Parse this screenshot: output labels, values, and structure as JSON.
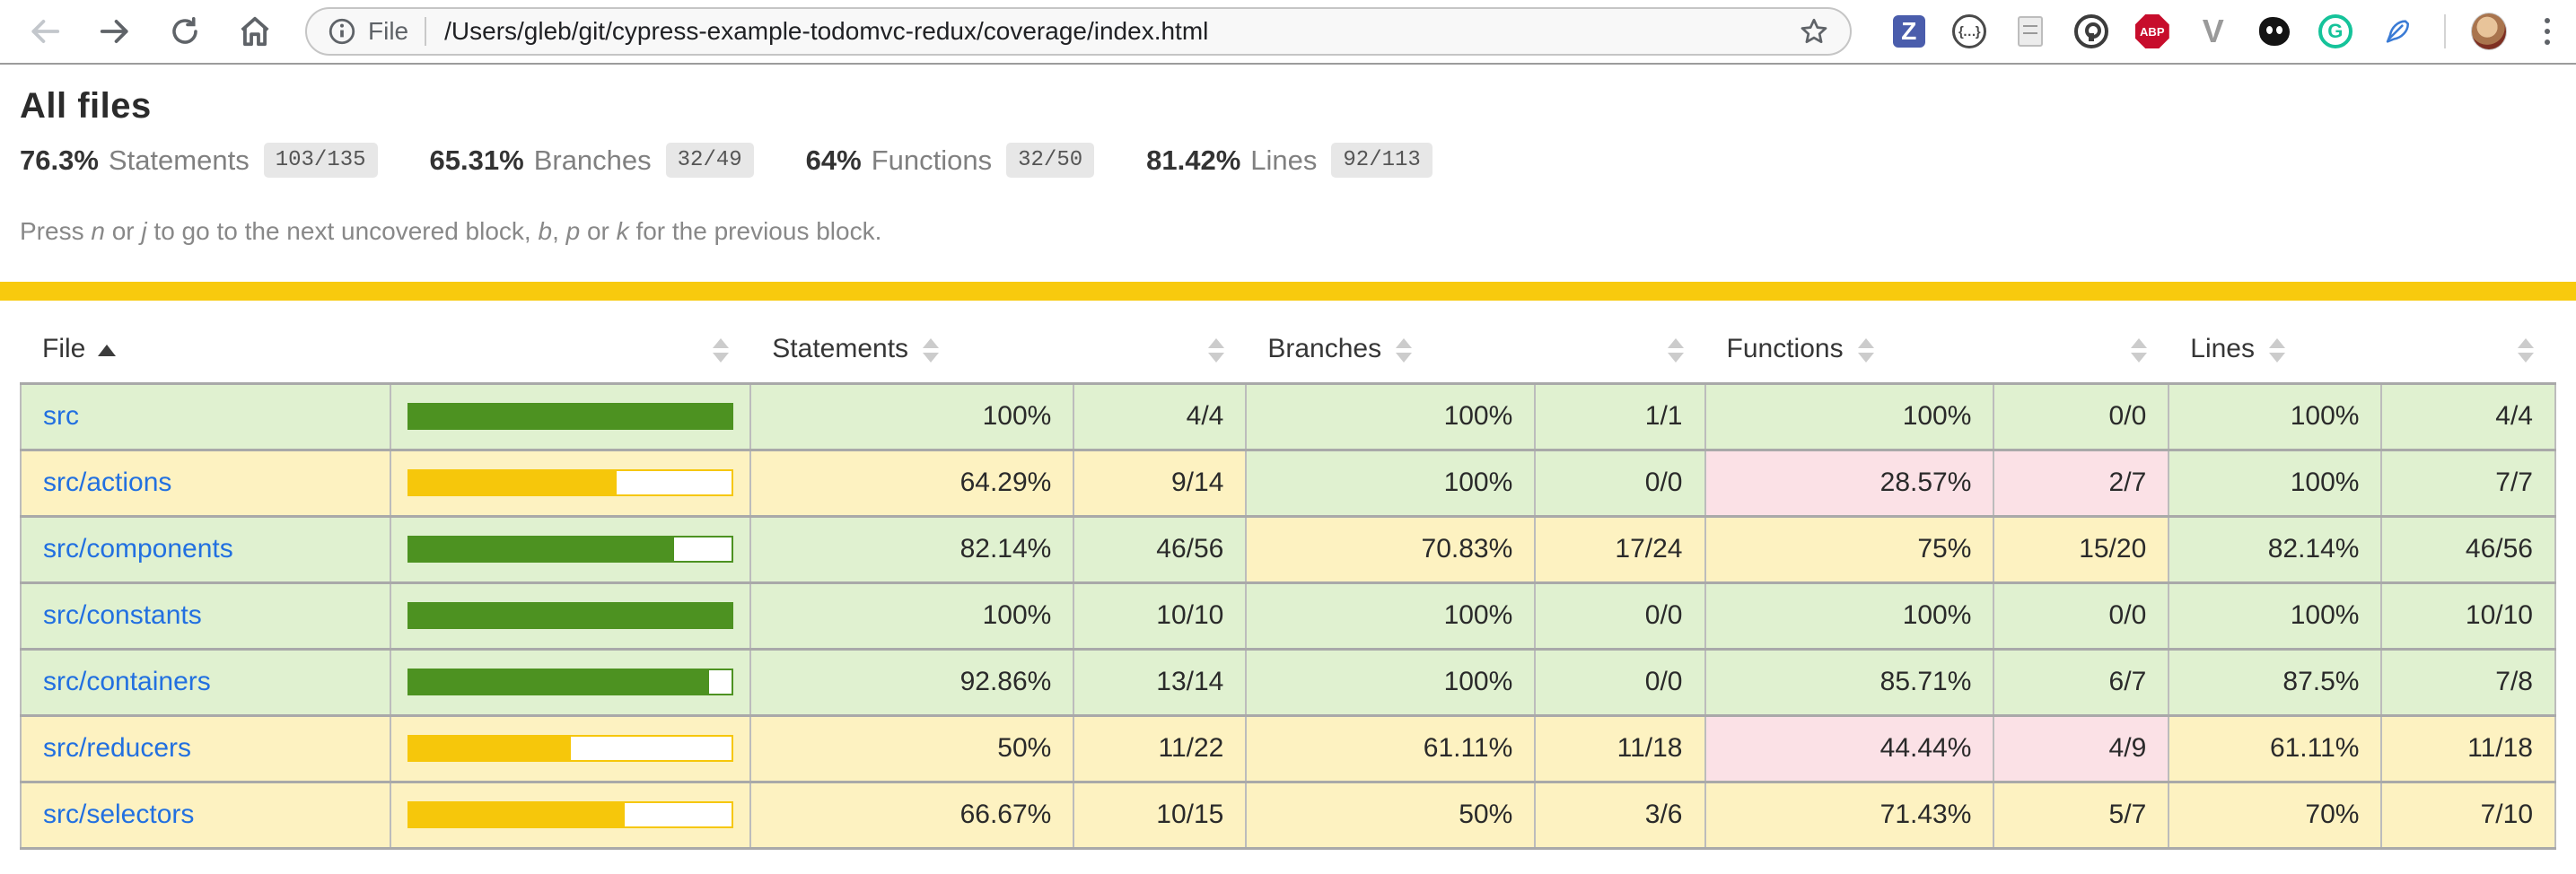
{
  "browser": {
    "scheme_label": "File",
    "url": "/Users/gleb/git/cypress-example-todomvc-redux/coverage/index.html",
    "extensions": [
      {
        "name": "zotero",
        "glyph": "Z"
      },
      {
        "name": "json-viewer",
        "glyph": "{…}"
      },
      {
        "name": "notes",
        "glyph": ""
      },
      {
        "name": "onepassword",
        "glyph": ""
      },
      {
        "name": "adblock-plus",
        "glyph": "ABP"
      },
      {
        "name": "vue-devtools",
        "glyph": "V"
      },
      {
        "name": "monster",
        "glyph": ""
      },
      {
        "name": "grammarly",
        "glyph": "G"
      },
      {
        "name": "feather",
        "glyph": ""
      }
    ]
  },
  "page": {
    "title": "All files"
  },
  "summary": {
    "items": [
      {
        "pct": "76.3%",
        "label": "Statements",
        "frac": "103/135"
      },
      {
        "pct": "65.31%",
        "label": "Branches",
        "frac": "32/49"
      },
      {
        "pct": "64%",
        "label": "Functions",
        "frac": "32/50"
      },
      {
        "pct": "81.42%",
        "label": "Lines",
        "frac": "92/113"
      }
    ]
  },
  "hint": {
    "segments": [
      {
        "t": "Press "
      },
      {
        "t": "n",
        "i": true
      },
      {
        "t": " or "
      },
      {
        "t": "j",
        "i": true
      },
      {
        "t": " to go to the next uncovered block, "
      },
      {
        "t": "b",
        "i": true
      },
      {
        "t": ", "
      },
      {
        "t": "p",
        "i": true
      },
      {
        "t": " or "
      },
      {
        "t": "k",
        "i": true
      },
      {
        "t": " for the previous block."
      }
    ]
  },
  "table": {
    "headers": {
      "file": "File",
      "statements": "Statements",
      "branches": "Branches",
      "functions": "Functions",
      "lines": "Lines"
    },
    "sort": {
      "column": "file",
      "direction": "asc"
    },
    "rows": [
      {
        "file": "src",
        "level": "high",
        "bar": {
          "pct": 100,
          "level": "high"
        },
        "statements": {
          "pct": "100%",
          "frac": "4/4",
          "level": "high"
        },
        "branches": {
          "pct": "100%",
          "frac": "1/1",
          "level": "high"
        },
        "functions": {
          "pct": "100%",
          "frac": "0/0",
          "level": "high"
        },
        "lines": {
          "pct": "100%",
          "frac": "4/4",
          "level": "high"
        }
      },
      {
        "file": "src/actions",
        "level": "medium",
        "bar": {
          "pct": 64.29,
          "level": "medium"
        },
        "statements": {
          "pct": "64.29%",
          "frac": "9/14",
          "level": "medium"
        },
        "branches": {
          "pct": "100%",
          "frac": "0/0",
          "level": "high"
        },
        "functions": {
          "pct": "28.57%",
          "frac": "2/7",
          "level": "low"
        },
        "lines": {
          "pct": "100%",
          "frac": "7/7",
          "level": "high"
        }
      },
      {
        "file": "src/components",
        "level": "high",
        "bar": {
          "pct": 82.14,
          "level": "high"
        },
        "statements": {
          "pct": "82.14%",
          "frac": "46/56",
          "level": "high"
        },
        "branches": {
          "pct": "70.83%",
          "frac": "17/24",
          "level": "medium"
        },
        "functions": {
          "pct": "75%",
          "frac": "15/20",
          "level": "medium"
        },
        "lines": {
          "pct": "82.14%",
          "frac": "46/56",
          "level": "high"
        }
      },
      {
        "file": "src/constants",
        "level": "high",
        "bar": {
          "pct": 100,
          "level": "high"
        },
        "statements": {
          "pct": "100%",
          "frac": "10/10",
          "level": "high"
        },
        "branches": {
          "pct": "100%",
          "frac": "0/0",
          "level": "high"
        },
        "functions": {
          "pct": "100%",
          "frac": "0/0",
          "level": "high"
        },
        "lines": {
          "pct": "100%",
          "frac": "10/10",
          "level": "high"
        }
      },
      {
        "file": "src/containers",
        "level": "high",
        "bar": {
          "pct": 92.86,
          "level": "high"
        },
        "statements": {
          "pct": "92.86%",
          "frac": "13/14",
          "level": "high"
        },
        "branches": {
          "pct": "100%",
          "frac": "0/0",
          "level": "high"
        },
        "functions": {
          "pct": "85.71%",
          "frac": "6/7",
          "level": "high"
        },
        "lines": {
          "pct": "87.5%",
          "frac": "7/8",
          "level": "high"
        }
      },
      {
        "file": "src/reducers",
        "level": "medium",
        "bar": {
          "pct": 50,
          "level": "medium"
        },
        "statements": {
          "pct": "50%",
          "frac": "11/22",
          "level": "medium"
        },
        "branches": {
          "pct": "61.11%",
          "frac": "11/18",
          "level": "medium"
        },
        "functions": {
          "pct": "44.44%",
          "frac": "4/9",
          "level": "low"
        },
        "lines": {
          "pct": "61.11%",
          "frac": "11/18",
          "level": "medium"
        }
      },
      {
        "file": "src/selectors",
        "level": "medium",
        "bar": {
          "pct": 66.67,
          "level": "medium"
        },
        "statements": {
          "pct": "66.67%",
          "frac": "10/15",
          "level": "medium"
        },
        "branches": {
          "pct": "50%",
          "frac": "3/6",
          "level": "medium"
        },
        "functions": {
          "pct": "71.43%",
          "frac": "5/7",
          "level": "medium"
        },
        "lines": {
          "pct": "70%",
          "frac": "7/10",
          "level": "medium"
        }
      }
    ]
  },
  "colors": {
    "status_accent": "#f8ca0e",
    "high_bg": "#e0f1d0",
    "medium_bg": "#fdf2c1",
    "low_bg": "#fbe1e6",
    "high_fill": "#4d9221",
    "medium_fill": "#f6c70b",
    "low_fill": "#c21f39",
    "link": "#2270e0",
    "badge_bg": "#e7e7e7"
  }
}
